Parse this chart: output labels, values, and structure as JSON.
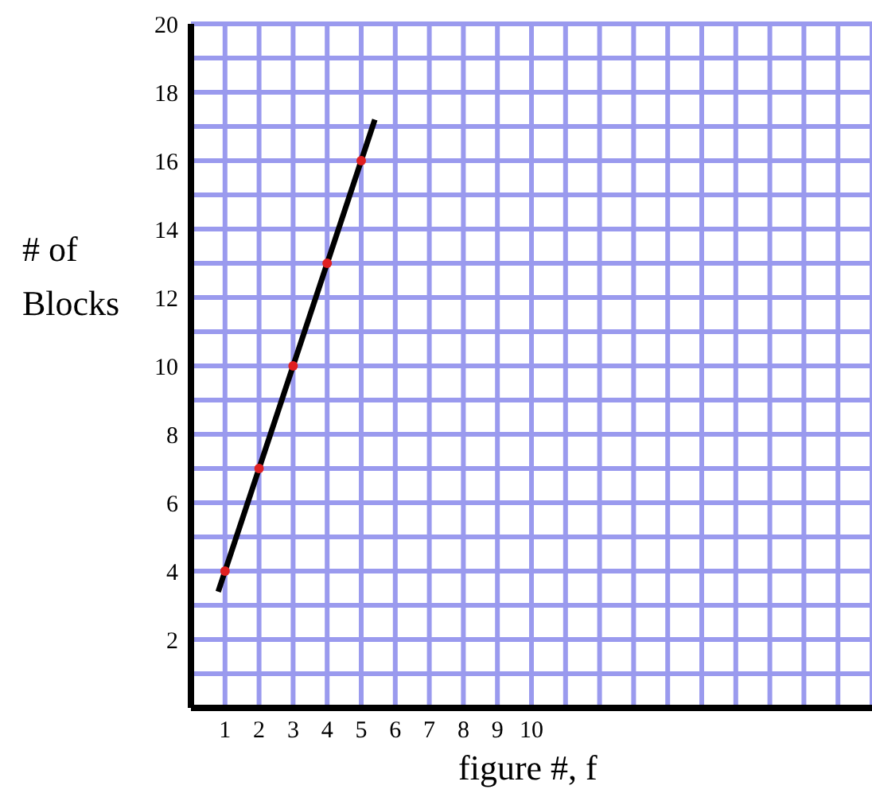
{
  "chart_data": {
    "type": "scatter",
    "xlabel": "figure #, f",
    "ylabel": "# of Blocks",
    "xlim": [
      0,
      20
    ],
    "ylim": [
      0,
      20
    ],
    "xticks": [
      1,
      2,
      3,
      4,
      5,
      6,
      7,
      8,
      9,
      10,
      {
        "value": 11,
        "label": null
      },
      {
        "value": 12,
        "label": null
      },
      {
        "value": 13,
        "label": null
      },
      {
        "value": 14,
        "label": null
      },
      {
        "value": 15,
        "label": null
      },
      {
        "value": 16,
        "label": null
      },
      {
        "value": 17,
        "label": null
      },
      {
        "value": 18,
        "label": null
      },
      {
        "value": 19,
        "label": null
      }
    ],
    "yticks": [
      {
        "value": 1,
        "label": null
      },
      2,
      {
        "value": 3,
        "label": null
      },
      4,
      {
        "value": 5,
        "label": null
      },
      6,
      {
        "value": 7,
        "label": null
      },
      8,
      {
        "value": 9,
        "label": null
      },
      10,
      {
        "value": 11,
        "label": null
      },
      12,
      {
        "value": 13,
        "label": null
      },
      14,
      {
        "value": 15,
        "label": null
      },
      16,
      {
        "value": 17,
        "label": null
      },
      18,
      {
        "value": 19,
        "label": null
      },
      20
    ],
    "grid": true,
    "marker": "circle",
    "series": [
      {
        "color": "#e02020",
        "x": [
          1,
          2,
          3,
          4,
          5
        ],
        "values": [
          4,
          7,
          10,
          13,
          16
        ]
      },
      {
        "type": "line",
        "color": "#000000",
        "x": [
          0.8,
          5.4
        ],
        "values": [
          3.4,
          17.2
        ],
        "marker": "none"
      }
    ]
  }
}
